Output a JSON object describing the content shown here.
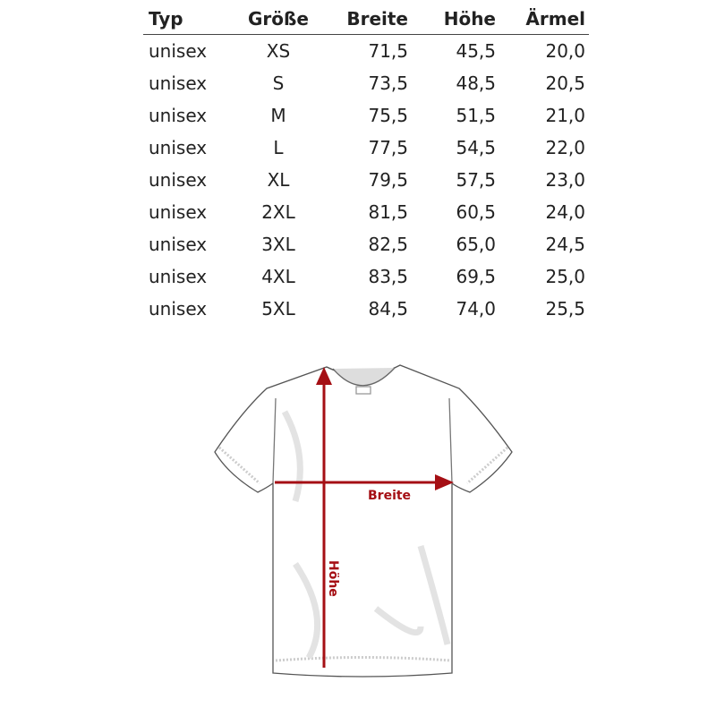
{
  "table": {
    "headers": [
      "Typ",
      "Größe",
      "Breite",
      "Höhe",
      "Ärmel"
    ],
    "rows": [
      [
        "unisex",
        "XS",
        "71,5",
        "45,5",
        "20,0"
      ],
      [
        "unisex",
        "S",
        "73,5",
        "48,5",
        "20,5"
      ],
      [
        "unisex",
        "M",
        "75,5",
        "51,5",
        "21,0"
      ],
      [
        "unisex",
        "L",
        "77,5",
        "54,5",
        "22,0"
      ],
      [
        "unisex",
        "XL",
        "79,5",
        "57,5",
        "23,0"
      ],
      [
        "unisex",
        "2XL",
        "81,5",
        "60,5",
        "24,0"
      ],
      [
        "unisex",
        "3XL",
        "82,5",
        "65,0",
        "24,5"
      ],
      [
        "unisex",
        "4XL",
        "83,5",
        "69,5",
        "25,0"
      ],
      [
        "unisex",
        "5XL",
        "84,5",
        "74,0",
        "25,5"
      ]
    ]
  },
  "diagram": {
    "width_label": "Breite",
    "height_label": "Höhe",
    "arrow_color": "#a50f14"
  }
}
